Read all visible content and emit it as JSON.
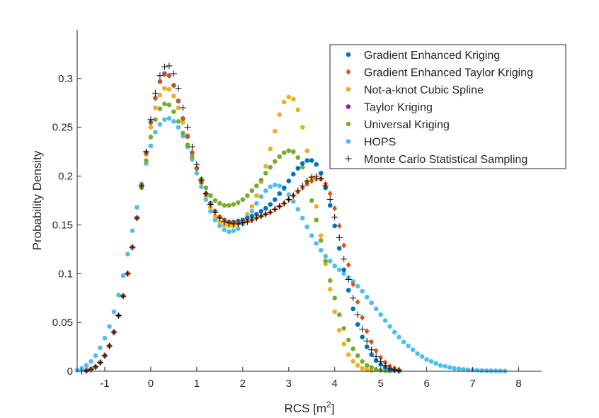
{
  "chart_data": {
    "type": "scatter",
    "xlabel": "RCS [m",
    "xlabel_sup": "2",
    "xlabel_close": "]",
    "ylabel": "Probability Density",
    "xlim": [
      -1.6,
      8.5
    ],
    "ylim": [
      0,
      0.35
    ],
    "xticks": [
      -1,
      0,
      1,
      2,
      3,
      4,
      5,
      6,
      7,
      8
    ],
    "xtick_labels": [
      "-1",
      "0",
      "1",
      "2",
      "3",
      "4",
      "5",
      "6",
      "7",
      "8"
    ],
    "yticks": [
      0,
      0.05,
      0.1,
      0.15,
      0.2,
      0.25,
      0.3
    ],
    "ytick_labels": [
      "0",
      "0.05",
      "0.1",
      "0.15",
      "0.2",
      "0.25",
      "0.3"
    ],
    "legend_position": "top-right",
    "series": [
      {
        "name": "Gradient Enhanced Kriging",
        "marker": "dot",
        "color": "#0072BD",
        "x": [
          -1.4,
          -1.3,
          -1.2,
          -1.1,
          -1.0,
          -0.9,
          -0.8,
          -0.7,
          -0.6,
          -0.5,
          -0.4,
          -0.3,
          -0.2,
          -0.1,
          0.0,
          0.1,
          0.2,
          0.3,
          0.4,
          0.5,
          0.6,
          0.7,
          0.8,
          0.9,
          1.0,
          1.1,
          1.2,
          1.3,
          1.4,
          1.5,
          1.6,
          1.7,
          1.8,
          1.9,
          2.0,
          2.1,
          2.2,
          2.3,
          2.4,
          2.5,
          2.6,
          2.7,
          2.8,
          2.9,
          3.0,
          3.1,
          3.2,
          3.3,
          3.4,
          3.5,
          3.6,
          3.7,
          3.8,
          3.9,
          4.0,
          4.1,
          4.2,
          4.3,
          4.4,
          4.5,
          4.6,
          4.7,
          4.8,
          4.9,
          5.0,
          5.1,
          5.2,
          5.3,
          5.4
        ],
        "y": [
          0.0007,
          0.002,
          0.0045,
          0.009,
          0.016,
          0.026,
          0.04,
          0.057,
          0.077,
          0.1,
          0.127,
          0.157,
          0.19,
          0.224,
          0.255,
          0.28,
          0.297,
          0.305,
          0.303,
          0.293,
          0.277,
          0.259,
          0.241,
          0.224,
          0.208,
          0.194,
          0.182,
          0.172,
          0.164,
          0.158,
          0.155,
          0.153,
          0.153,
          0.154,
          0.155,
          0.157,
          0.159,
          0.161,
          0.164,
          0.167,
          0.171,
          0.176,
          0.182,
          0.188,
          0.195,
          0.202,
          0.208,
          0.213,
          0.216,
          0.216,
          0.212,
          0.203,
          0.188,
          0.17,
          0.149,
          0.126,
          0.104,
          0.083,
          0.064,
          0.048,
          0.035,
          0.025,
          0.017,
          0.011,
          0.007,
          0.004,
          0.002,
          0.001,
          0.0005
        ]
      },
      {
        "name": "Gradient Enhanced Taylor Kriging",
        "marker": "diamond",
        "color": "#D95319",
        "x": [
          -1.4,
          -1.3,
          -1.2,
          -1.1,
          -1.0,
          -0.9,
          -0.8,
          -0.7,
          -0.6,
          -0.5,
          -0.4,
          -0.3,
          -0.2,
          -0.1,
          0.0,
          0.1,
          0.2,
          0.3,
          0.4,
          0.5,
          0.6,
          0.7,
          0.8,
          0.9,
          1.0,
          1.1,
          1.2,
          1.3,
          1.4,
          1.5,
          1.6,
          1.7,
          1.8,
          1.9,
          2.0,
          2.1,
          2.2,
          2.3,
          2.4,
          2.5,
          2.6,
          2.7,
          2.8,
          2.9,
          3.0,
          3.1,
          3.2,
          3.3,
          3.4,
          3.5,
          3.6,
          3.7,
          3.8,
          3.9,
          4.0,
          4.1,
          4.2,
          4.3,
          4.4,
          4.5,
          4.6,
          4.7,
          4.8,
          4.9,
          5.0,
          5.1,
          5.2,
          5.3,
          5.4
        ],
        "y": [
          0.0007,
          0.002,
          0.0045,
          0.009,
          0.016,
          0.026,
          0.04,
          0.057,
          0.077,
          0.1,
          0.127,
          0.157,
          0.19,
          0.224,
          0.255,
          0.28,
          0.297,
          0.304,
          0.303,
          0.293,
          0.277,
          0.259,
          0.241,
          0.224,
          0.208,
          0.194,
          0.182,
          0.172,
          0.164,
          0.158,
          0.155,
          0.153,
          0.152,
          0.152,
          0.153,
          0.154,
          0.155,
          0.157,
          0.159,
          0.161,
          0.163,
          0.166,
          0.169,
          0.172,
          0.176,
          0.18,
          0.184,
          0.188,
          0.192,
          0.195,
          0.197,
          0.197,
          0.192,
          0.182,
          0.167,
          0.149,
          0.129,
          0.109,
          0.089,
          0.071,
          0.055,
          0.041,
          0.03,
          0.021,
          0.014,
          0.009,
          0.005,
          0.003,
          0.0015
        ]
      },
      {
        "name": "Not-a-knot Cubic Spline",
        "marker": "dot",
        "color": "#EDB120",
        "x": [
          -1.4,
          -1.3,
          -1.2,
          -1.1,
          -1.0,
          -0.9,
          -0.8,
          -0.7,
          -0.6,
          -0.5,
          -0.4,
          -0.3,
          -0.2,
          -0.1,
          0.0,
          0.1,
          0.2,
          0.3,
          0.4,
          0.5,
          0.6,
          0.7,
          0.8,
          0.9,
          1.0,
          1.1,
          1.2,
          1.3,
          1.4,
          1.5,
          1.6,
          1.7,
          1.8,
          1.9,
          2.0,
          2.1,
          2.2,
          2.3,
          2.4,
          2.5,
          2.6,
          2.7,
          2.8,
          2.9,
          3.0,
          3.1,
          3.2,
          3.3,
          3.4,
          3.5,
          3.6,
          3.7,
          3.8,
          3.9,
          4.0,
          4.1,
          4.2,
          4.3,
          4.4,
          4.5,
          4.6,
          4.7,
          4.8
        ],
        "y": [
          0.0007,
          0.002,
          0.0045,
          0.009,
          0.016,
          0.026,
          0.04,
          0.057,
          0.077,
          0.1,
          0.127,
          0.157,
          0.19,
          0.222,
          0.25,
          0.27,
          0.283,
          0.29,
          0.289,
          0.282,
          0.27,
          0.255,
          0.24,
          0.224,
          0.208,
          0.193,
          0.18,
          0.168,
          0.159,
          0.153,
          0.15,
          0.149,
          0.149,
          0.151,
          0.155,
          0.161,
          0.169,
          0.18,
          0.194,
          0.21,
          0.228,
          0.246,
          0.263,
          0.276,
          0.281,
          0.279,
          0.268,
          0.25,
          0.226,
          0.198,
          0.169,
          0.139,
          0.11,
          0.084,
          0.061,
          0.042,
          0.028,
          0.017,
          0.01,
          0.006,
          0.003,
          0.0015,
          0.0006
        ]
      },
      {
        "name": "Taylor Kriging",
        "marker": "dot",
        "color": "#7E2F8E",
        "x": [],
        "y": []
      },
      {
        "name": "Universal Kriging",
        "marker": "dot",
        "color": "#77AC30",
        "x": [
          -1.4,
          -1.3,
          -1.2,
          -1.1,
          -1.0,
          -0.9,
          -0.8,
          -0.7,
          -0.6,
          -0.5,
          -0.4,
          -0.3,
          -0.2,
          -0.1,
          0.0,
          0.1,
          0.2,
          0.3,
          0.4,
          0.5,
          0.6,
          0.7,
          0.8,
          0.9,
          1.0,
          1.1,
          1.2,
          1.3,
          1.4,
          1.5,
          1.6,
          1.7,
          1.8,
          1.9,
          2.0,
          2.1,
          2.2,
          2.3,
          2.4,
          2.5,
          2.6,
          2.7,
          2.8,
          2.9,
          3.0,
          3.1,
          3.2,
          3.3,
          3.4,
          3.5,
          3.6,
          3.7,
          3.8,
          3.9,
          4.0,
          4.1,
          4.2,
          4.3,
          4.4,
          4.5,
          4.6,
          4.7,
          4.8,
          4.9,
          5.0,
          5.1,
          5.2
        ],
        "y": [
          0.0007,
          0.002,
          0.0045,
          0.009,
          0.016,
          0.026,
          0.04,
          0.057,
          0.077,
          0.1,
          0.127,
          0.157,
          0.188,
          0.216,
          0.24,
          0.258,
          0.269,
          0.274,
          0.273,
          0.266,
          0.256,
          0.244,
          0.232,
          0.22,
          0.208,
          0.197,
          0.188,
          0.18,
          0.175,
          0.172,
          0.17,
          0.17,
          0.171,
          0.173,
          0.176,
          0.18,
          0.185,
          0.19,
          0.196,
          0.203,
          0.209,
          0.215,
          0.22,
          0.224,
          0.226,
          0.225,
          0.219,
          0.209,
          0.194,
          0.175,
          0.155,
          0.134,
          0.113,
          0.093,
          0.075,
          0.058,
          0.044,
          0.032,
          0.023,
          0.016,
          0.01,
          0.006,
          0.004,
          0.002,
          0.001,
          0.0006,
          0.0003
        ]
      },
      {
        "name": "HOPS",
        "marker": "dot",
        "color": "#4DBEEE",
        "x": [
          -1.6,
          -1.5,
          -1.4,
          -1.3,
          -1.2,
          -1.1,
          -1.0,
          -0.9,
          -0.8,
          -0.7,
          -0.6,
          -0.5,
          -0.4,
          -0.3,
          -0.2,
          -0.1,
          0.0,
          0.1,
          0.2,
          0.3,
          0.4,
          0.5,
          0.6,
          0.7,
          0.8,
          0.9,
          1.0,
          1.1,
          1.2,
          1.3,
          1.4,
          1.5,
          1.6,
          1.7,
          1.8,
          1.9,
          2.0,
          2.1,
          2.2,
          2.3,
          2.4,
          2.5,
          2.6,
          2.7,
          2.8,
          2.9,
          3.0,
          3.1,
          3.2,
          3.3,
          3.4,
          3.5,
          3.6,
          3.7,
          3.8,
          3.9,
          4.0,
          4.1,
          4.2,
          4.3,
          4.4,
          4.5,
          4.6,
          4.7,
          4.8,
          4.9,
          5.0,
          5.1,
          5.2,
          5.3,
          5.4,
          5.5,
          5.6,
          5.7,
          5.8,
          5.9,
          6.0,
          6.1,
          6.2,
          6.3,
          6.4,
          6.5,
          6.6,
          6.7,
          6.8,
          6.9,
          7.0,
          7.1,
          7.2,
          7.3,
          7.4,
          7.5,
          7.6,
          7.7
        ],
        "y": [
          0.001,
          0.003,
          0.006,
          0.01,
          0.016,
          0.024,
          0.034,
          0.046,
          0.061,
          0.078,
          0.098,
          0.12,
          0.144,
          0.168,
          0.192,
          0.213,
          0.231,
          0.245,
          0.253,
          0.258,
          0.259,
          0.256,
          0.25,
          0.241,
          0.23,
          0.217,
          0.203,
          0.189,
          0.176,
          0.164,
          0.155,
          0.149,
          0.145,
          0.143,
          0.144,
          0.146,
          0.151,
          0.157,
          0.164,
          0.172,
          0.179,
          0.185,
          0.189,
          0.191,
          0.19,
          0.187,
          0.181,
          0.174,
          0.166,
          0.157,
          0.148,
          0.139,
          0.131,
          0.124,
          0.118,
          0.113,
          0.108,
          0.104,
          0.1,
          0.096,
          0.092,
          0.087,
          0.082,
          0.076,
          0.07,
          0.064,
          0.058,
          0.052,
          0.046,
          0.04,
          0.035,
          0.03,
          0.026,
          0.022,
          0.018,
          0.015,
          0.012,
          0.01,
          0.008,
          0.006,
          0.005,
          0.004,
          0.003,
          0.0025,
          0.002,
          0.0015,
          0.0012,
          0.001,
          0.0008,
          0.0006,
          0.0005,
          0.0004,
          0.0003,
          0.0002
        ]
      },
      {
        "name": "Monte Carlo Statistical Sampling",
        "marker": "plus",
        "color": "#000000",
        "x": [
          -1.5,
          -1.4,
          -1.3,
          -1.2,
          -1.1,
          -1.0,
          -0.9,
          -0.8,
          -0.7,
          -0.6,
          -0.5,
          -0.4,
          -0.3,
          -0.2,
          -0.1,
          0.0,
          0.1,
          0.2,
          0.3,
          0.4,
          0.5,
          0.6,
          0.7,
          0.8,
          0.9,
          1.0,
          1.1,
          1.2,
          1.3,
          1.4,
          1.5,
          1.6,
          1.7,
          1.8,
          1.9,
          2.0,
          2.1,
          2.2,
          2.3,
          2.4,
          2.5,
          2.6,
          2.7,
          2.8,
          2.9,
          3.0,
          3.1,
          3.2,
          3.3,
          3.4,
          3.5,
          3.6,
          3.7,
          3.8,
          3.9,
          4.0,
          4.1,
          4.2,
          4.3,
          4.4,
          4.5,
          4.6,
          4.7,
          4.8,
          4.9,
          5.0,
          5.1,
          5.2,
          5.3,
          5.4
        ],
        "y": [
          0.0002,
          0.0007,
          0.002,
          0.0045,
          0.009,
          0.016,
          0.026,
          0.04,
          0.057,
          0.077,
          0.1,
          0.127,
          0.157,
          0.19,
          0.225,
          0.258,
          0.285,
          0.303,
          0.312,
          0.313,
          0.305,
          0.29,
          0.27,
          0.25,
          0.23,
          0.212,
          0.196,
          0.182,
          0.171,
          0.163,
          0.157,
          0.153,
          0.152,
          0.151,
          0.151,
          0.152,
          0.153,
          0.155,
          0.157,
          0.159,
          0.161,
          0.163,
          0.166,
          0.169,
          0.172,
          0.176,
          0.18,
          0.185,
          0.19,
          0.195,
          0.199,
          0.2,
          0.198,
          0.19,
          0.176,
          0.158,
          0.137,
          0.115,
          0.094,
          0.075,
          0.058,
          0.043,
          0.031,
          0.022,
          0.015,
          0.01,
          0.006,
          0.003,
          0.0015,
          0.0008
        ]
      }
    ]
  }
}
